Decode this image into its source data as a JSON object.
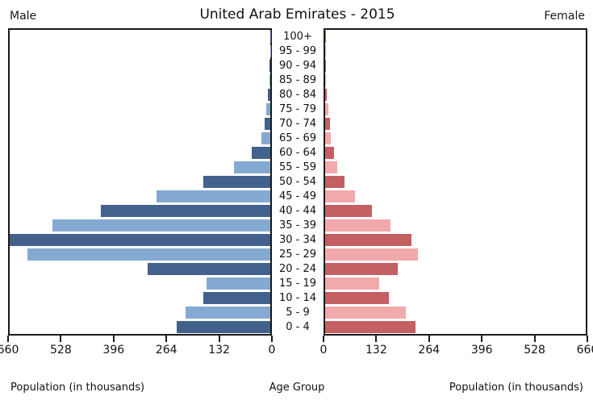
{
  "header": {
    "title": "United Arab Emirates - 2015",
    "left_label": "Male",
    "right_label": "Female"
  },
  "captions": {
    "left": "Population (in thousands)",
    "center": "Age Group",
    "right": "Population (in thousands)"
  },
  "colors": {
    "male_dark": "#42618C",
    "male_light": "#84AAD1",
    "female_dark": "#C45F63",
    "female_light": "#F2A9AB",
    "axis": "#1a1a1a"
  },
  "chart_data": {
    "type": "bar",
    "subtype": "population-pyramid",
    "title": "United Arab Emirates - 2015",
    "xlabel_left": "Population (in thousands)",
    "xlabel_right": "Population (in thousands)",
    "center_label": "Age Group",
    "xlim": [
      0,
      660
    ],
    "grid": false,
    "axis_ticks_left": [
      "660",
      "528",
      "396",
      "264",
      "132",
      "0"
    ],
    "axis_ticks_right": [
      "0",
      "132",
      "264",
      "396",
      "528",
      "660"
    ],
    "age_groups": [
      "100+",
      "95 - 99",
      "90 - 94",
      "85 - 89",
      "80 - 84",
      "75 - 79",
      "70 - 74",
      "65 - 69",
      "60 - 64",
      "55 - 59",
      "50 - 54",
      "45 - 49",
      "40 - 44",
      "35 - 39",
      "30 - 34",
      "25 - 29",
      "20 - 24",
      "15 - 19",
      "10 - 14",
      "5 - 9",
      "0 - 4"
    ],
    "series": [
      {
        "name": "Male",
        "side": "left",
        "values": [
          0.4,
          1,
          2,
          3,
          6,
          11,
          15,
          22,
          48,
          93,
          170,
          288,
          430,
          551,
          660,
          615,
          310,
          162,
          170,
          215,
          237
        ]
      },
      {
        "name": "Female",
        "side": "right",
        "values": [
          0.3,
          1,
          2,
          2,
          4,
          8,
          12,
          15,
          22,
          30,
          49,
          76,
          118,
          166,
          219,
          236,
          184,
          137,
          162,
          204,
          228
        ]
      }
    ]
  }
}
